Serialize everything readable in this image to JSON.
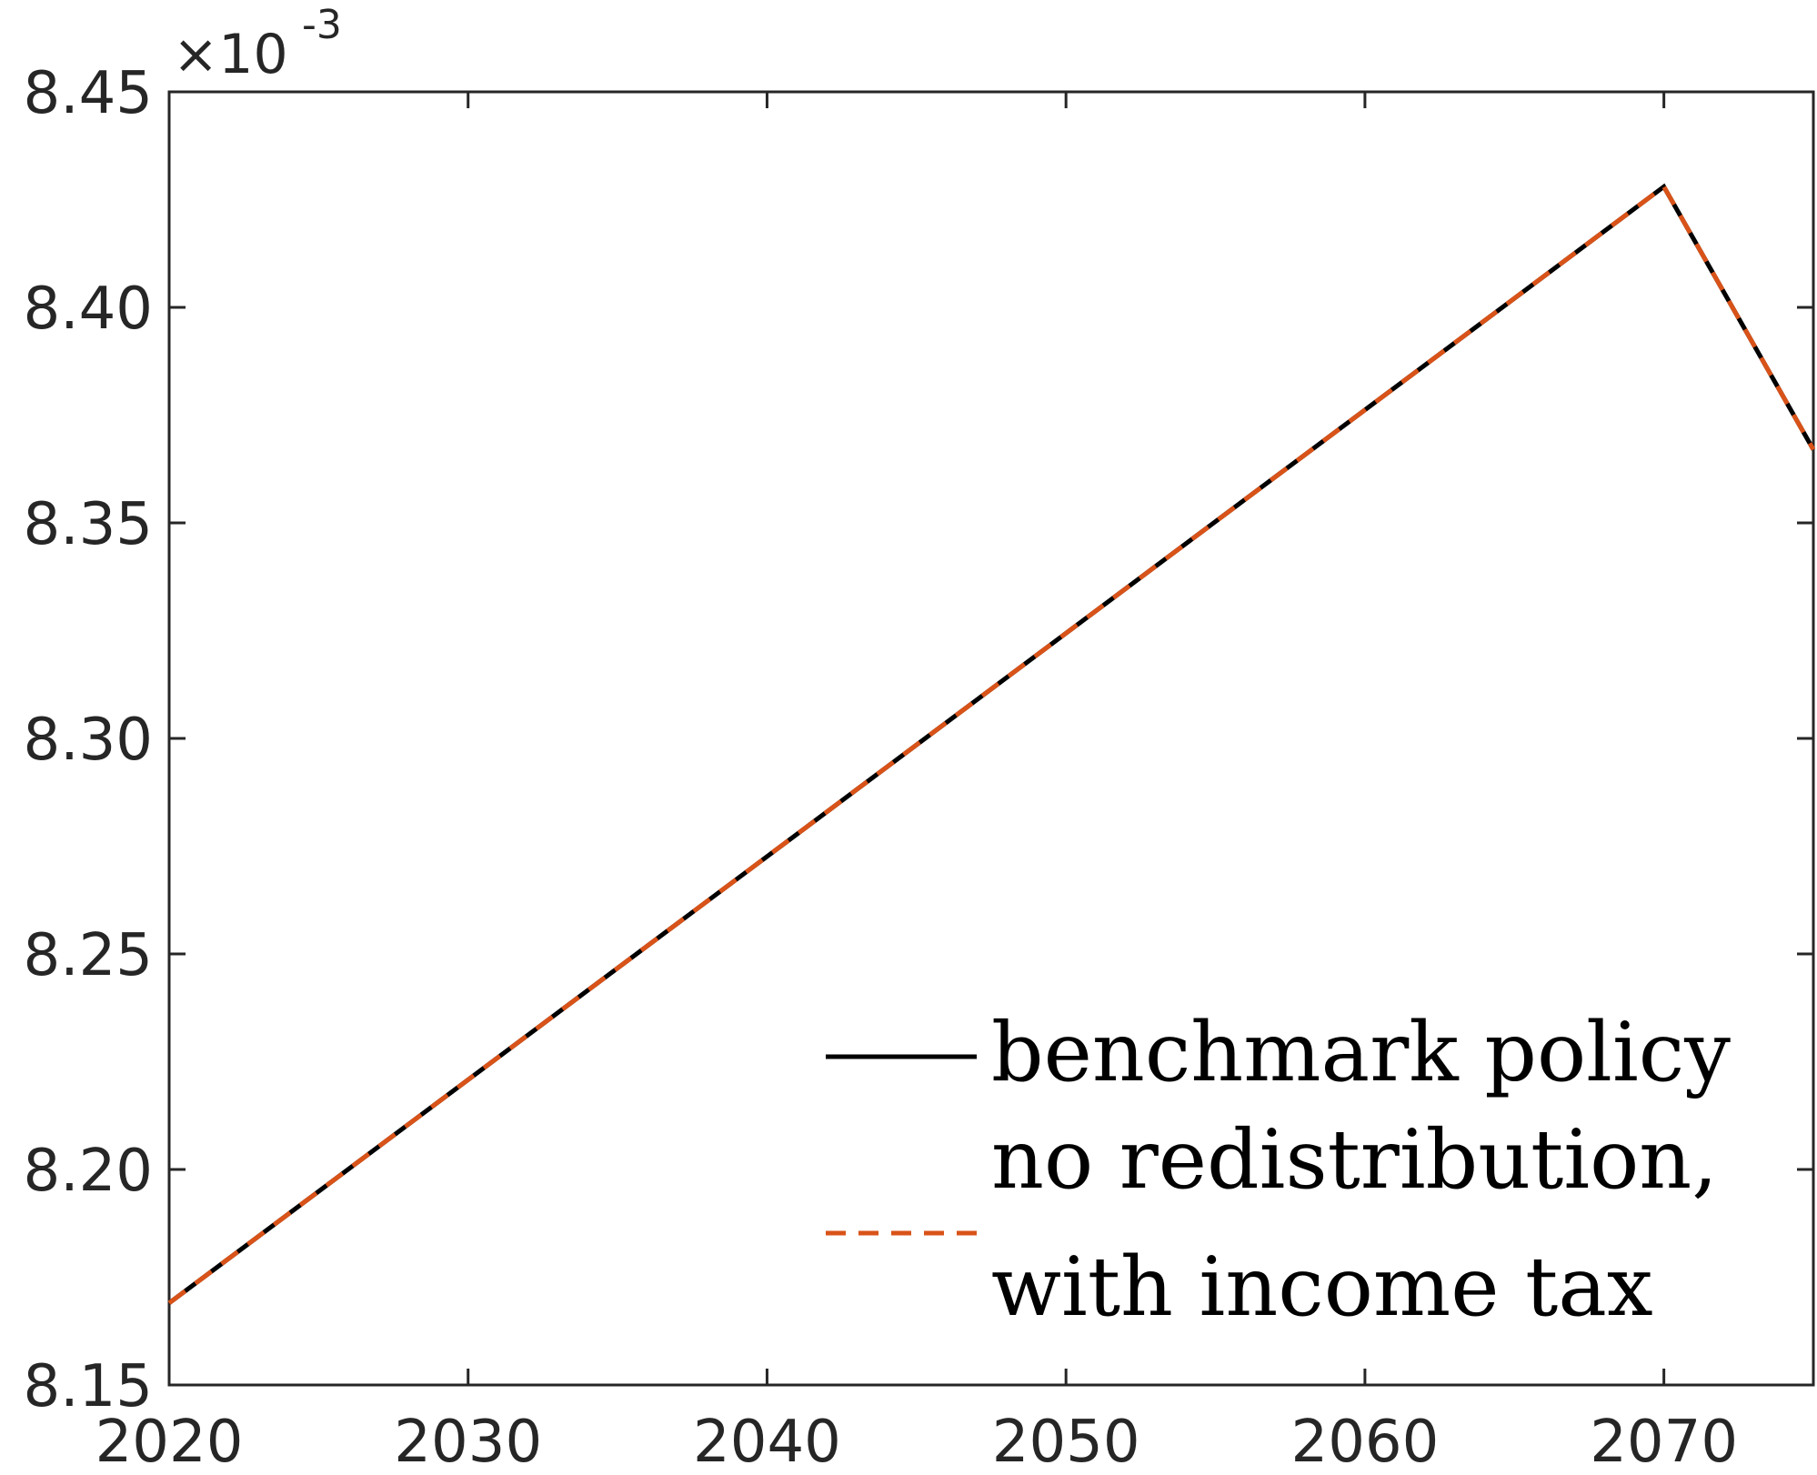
{
  "chart_data": {
    "type": "line",
    "x_ticks": [
      "2020",
      "2030",
      "2040",
      "2050",
      "2060",
      "2070"
    ],
    "y_ticks": [
      "8.15",
      "8.20",
      "8.25",
      "8.30",
      "8.35",
      "8.40",
      "8.45"
    ],
    "xlim": [
      2020,
      2075
    ],
    "ylim": [
      8.15,
      8.45
    ],
    "y_exponent": {
      "base": "×10",
      "power": "-3"
    },
    "grid": false,
    "legend_position": "bottom-right",
    "legend_lines": [
      "benchmark policy",
      "no redistribution,",
      "with income tax"
    ],
    "series": [
      {
        "name": "benchmark policy",
        "color": "#000000",
        "style": "solid",
        "x": [
          2020,
          2070,
          2075
        ],
        "y": [
          8.169,
          8.428,
          8.367
        ]
      },
      {
        "name": "no redistribution, with income tax",
        "color": "#D95319",
        "style": "dashed",
        "x": [
          2020,
          2070,
          2075
        ],
        "y": [
          8.169,
          8.428,
          8.367
        ]
      }
    ]
  }
}
